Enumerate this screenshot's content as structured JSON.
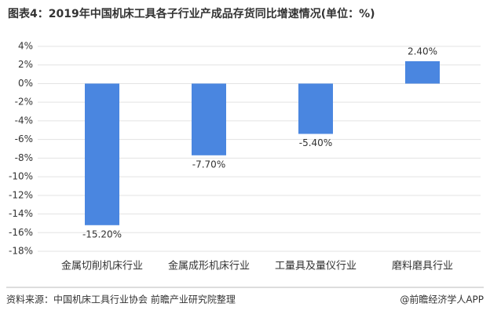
{
  "title": "图表4：2019年中国机床工具各子行业产成品存货同比增速情况(单位：%)",
  "chart_data": {
    "type": "bar",
    "categories": [
      "金属切削机床行业",
      "金属成形机床行业",
      "工量具及量仪行业",
      "磨料磨具行业"
    ],
    "values": [
      -15.2,
      -7.7,
      -5.4,
      2.4
    ],
    "value_labels": [
      "-15.20%",
      "-7.70%",
      "-5.40%",
      "2.40%"
    ],
    "color": "#4a86e0",
    "ylim": [
      -18,
      4
    ],
    "yticks": [
      {
        "value": 4,
        "label": "4%"
      },
      {
        "value": 2,
        "label": "2%"
      },
      {
        "value": 0,
        "label": "0%"
      },
      {
        "value": -2,
        "label": "-2%"
      },
      {
        "value": -4,
        "label": "-4%"
      },
      {
        "value": -6,
        "label": "-6%"
      },
      {
        "value": -8,
        "label": "-8%"
      },
      {
        "value": -10,
        "label": "-10%"
      },
      {
        "value": -12,
        "label": "-12%"
      },
      {
        "value": -14,
        "label": "-14%"
      },
      {
        "value": -16,
        "label": "-16%"
      },
      {
        "value": -18,
        "label": "-18%"
      }
    ],
    "grid": true
  },
  "footer": {
    "source": "资料来源：中国机床工具行业协会 前瞻产业研究院整理",
    "brand": "@前瞻经济学人APP"
  }
}
